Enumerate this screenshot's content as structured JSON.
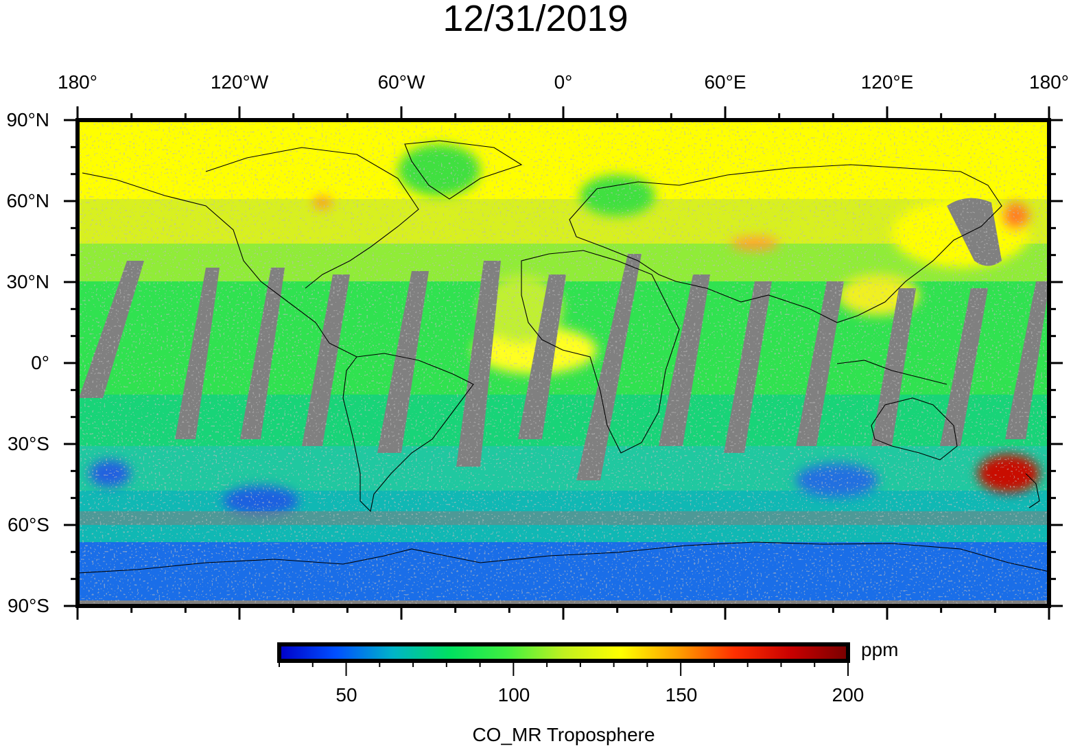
{
  "title": "12/31/2019",
  "lon_labels": [
    "180°",
    "120°W",
    "60°W",
    "0°",
    "60°E",
    "120°E",
    "180°"
  ],
  "lat_labels": [
    "90°N",
    "60°N",
    "30°N",
    "0°",
    "30°S",
    "60°S",
    "90°S"
  ],
  "colorbar": {
    "min": 30,
    "max": 200,
    "ticks": [
      "50",
      "100",
      "150",
      "200"
    ],
    "unit": "ppm",
    "label": "CO_MR Troposphere",
    "colors": [
      "#0000c8",
      "#0050ff",
      "#00b4c8",
      "#00e060",
      "#40f040",
      "#c0f020",
      "#ffff00",
      "#ffa000",
      "#ff3000",
      "#c80000",
      "#780000"
    ]
  },
  "map": {
    "projection": "equirectangular",
    "lon_range": [
      -180,
      180
    ],
    "lat_range": [
      -90,
      90
    ],
    "no_data_color": "#808080",
    "coastline_color": "#000000"
  }
}
